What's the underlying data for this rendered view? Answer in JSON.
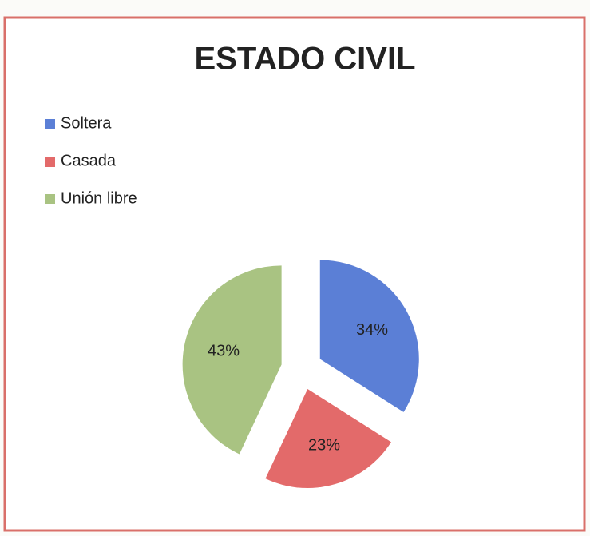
{
  "chart_data": {
    "type": "pie",
    "title": "ESTADO CIVIL",
    "categories": [
      "Soltera",
      "Casada",
      "Unión libre"
    ],
    "values": [
      34,
      23,
      43
    ],
    "value_labels": [
      "34%",
      "23%",
      "43%"
    ],
    "colors": [
      "#5b7fd6",
      "#e36a6a",
      "#a9c382"
    ],
    "legend": "top-left"
  }
}
